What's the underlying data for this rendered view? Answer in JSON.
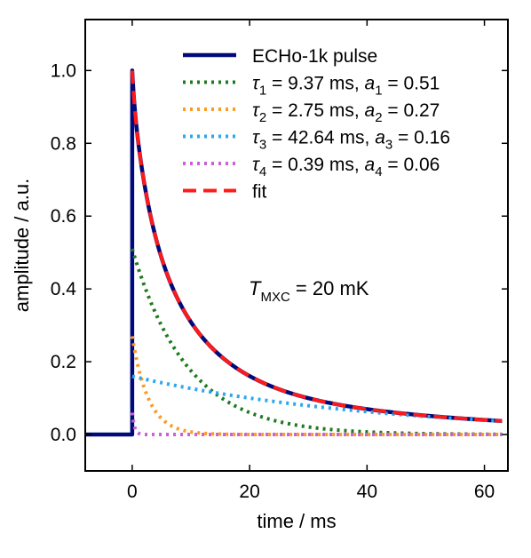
{
  "chart_data": {
    "type": "line",
    "xlabel": "time / ms",
    "ylabel": "amplitude / a.u.",
    "xlim": [
      -8,
      64
    ],
    "ylim": [
      -0.1,
      1.14
    ],
    "x_ticks": [
      0,
      20,
      40,
      60
    ],
    "x_tick_labels": [
      "0",
      "20",
      "40",
      "60"
    ],
    "y_ticks": [
      0.0,
      0.2,
      0.4,
      0.6,
      0.8,
      1.0
    ],
    "y_tick_labels": [
      "0.0",
      "0.2",
      "0.4",
      "0.6",
      "0.8",
      "1.0"
    ],
    "grid": false,
    "legend_position": "top-right",
    "annotation": {
      "italic": "T",
      "subscript": "MXC",
      "rest": " = 20 mK"
    },
    "series": [
      {
        "name": "ECHo-1k pulse",
        "color": "#000a7a",
        "style": "solid",
        "legend": {
          "label": "ECHo-1k pulse"
        },
        "pre_x": [
          -8,
          0
        ],
        "pre_y": [
          0,
          0
        ],
        "decay_start": 0,
        "decay_end": 63,
        "components": [
          {
            "tau": 9.37,
            "amp": 0.51
          },
          {
            "tau": 2.75,
            "amp": 0.27
          },
          {
            "tau": 42.64,
            "amp": 0.16
          },
          {
            "tau": 0.39,
            "amp": 0.06
          }
        ]
      },
      {
        "name": "τ1 = 9.37 ms, a1 = 0.51",
        "color": "#1e7a1e",
        "style": "dotted",
        "legend": {
          "tau_sub": "1",
          "tau_val": " = 9.37 ms, ",
          "a_sub": "1",
          "a_val": " = 0.51"
        },
        "decay_start": 0,
        "decay_end": 63,
        "components": [
          {
            "tau": 9.37,
            "amp": 0.51
          }
        ]
      },
      {
        "name": "τ2 = 2.75 ms, a2 = 0.27",
        "color": "#ff9a1e",
        "style": "dotted",
        "legend": {
          "tau_sub": "2",
          "tau_val": " = 2.75 ms, ",
          "a_sub": "2",
          "a_val": " = 0.27"
        },
        "decay_start": 0,
        "decay_end": 63,
        "components": [
          {
            "tau": 2.75,
            "amp": 0.27
          }
        ]
      },
      {
        "name": "τ3 = 42.64 ms, a3 = 0.16",
        "color": "#2aa8f0",
        "style": "dotted",
        "legend": {
          "tau_sub": "3",
          "tau_val": " = 42.64 ms, ",
          "a_sub": "3",
          "a_val": " = 0.16"
        },
        "decay_start": 0,
        "decay_end": 63,
        "components": [
          {
            "tau": 42.64,
            "amp": 0.16
          }
        ]
      },
      {
        "name": "τ4 = 0.39 ms, a4 = 0.06",
        "color": "#c861d6",
        "style": "dotted",
        "legend": {
          "tau_sub": "4",
          "tau_val": " = 0.39 ms, ",
          "a_sub": "4",
          "a_val": " = 0.06"
        },
        "decay_start": 0,
        "decay_end": 63,
        "components": [
          {
            "tau": 0.39,
            "amp": 0.06
          }
        ]
      },
      {
        "name": "fit",
        "color": "#ff1a1a",
        "style": "dashed",
        "legend": {
          "label": "fit"
        },
        "decay_start": 0,
        "decay_end": 63,
        "components": [
          {
            "tau": 9.37,
            "amp": 0.51
          },
          {
            "tau": 2.75,
            "amp": 0.27
          },
          {
            "tau": 42.64,
            "amp": 0.16
          },
          {
            "tau": 0.39,
            "amp": 0.06
          }
        ]
      }
    ]
  }
}
